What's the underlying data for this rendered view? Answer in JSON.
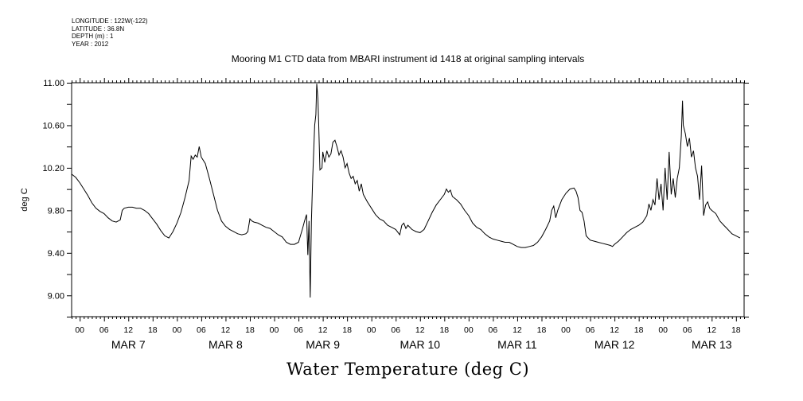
{
  "metadata": {
    "longitude": "LONGITUDE : 122W(-122)",
    "latitude": "LATITUDE : 36.8N",
    "depth": "DEPTH (m) : 1",
    "year": "YEAR : 2012"
  },
  "chart_data": {
    "type": "line",
    "title": "Mooring M1 CTD data from MBARI instrument id 1418 at original sampling intervals",
    "bottom_label": "Water Temperature (deg C)",
    "ylabel": "deg C",
    "xlabel": "",
    "ylim": [
      8.8,
      11.0
    ],
    "yticks": [
      9.0,
      9.4,
      9.8,
      10.2,
      10.6,
      11.0
    ],
    "ytick_labels": [
      "9.00",
      "9.40",
      "9.80",
      "10.20",
      "10.60",
      "11.00"
    ],
    "x_unit": "hours since MAR 7 00:00",
    "xlim": [
      -2,
      164
    ],
    "hour_ticks": [
      0,
      6,
      12,
      18
    ],
    "hour_tick_labels": [
      "00",
      "06",
      "12",
      "18"
    ],
    "day_labels": [
      "MAR  7",
      "MAR  8",
      "MAR  9",
      "MAR  10",
      "MAR 11",
      "MAR 12",
      "MAR 13"
    ],
    "grid": false,
    "series": [
      {
        "values": [
          [
            -2,
            10.14
          ],
          [
            -1,
            10.11
          ],
          [
            0,
            10.06
          ],
          [
            1,
            10.0
          ],
          [
            2,
            9.94
          ],
          [
            3,
            9.87
          ],
          [
            4,
            9.82
          ],
          [
            5,
            9.79
          ],
          [
            6,
            9.77
          ],
          [
            7,
            9.73
          ],
          [
            8,
            9.7
          ],
          [
            9,
            9.69
          ],
          [
            10,
            9.71
          ],
          [
            10.5,
            9.8
          ],
          [
            11,
            9.82
          ],
          [
            12,
            9.83
          ],
          [
            13,
            9.83
          ],
          [
            14,
            9.82
          ],
          [
            15,
            9.82
          ],
          [
            16,
            9.8
          ],
          [
            17,
            9.77
          ],
          [
            18,
            9.72
          ],
          [
            19,
            9.67
          ],
          [
            20,
            9.61
          ],
          [
            21,
            9.56
          ],
          [
            22,
            9.54
          ],
          [
            23,
            9.6
          ],
          [
            24,
            9.68
          ],
          [
            25,
            9.78
          ],
          [
            26,
            9.92
          ],
          [
            27,
            10.08
          ],
          [
            27.5,
            10.31
          ],
          [
            28,
            10.28
          ],
          [
            28.5,
            10.32
          ],
          [
            29,
            10.3
          ],
          [
            29.5,
            10.4
          ],
          [
            30,
            10.3
          ],
          [
            31,
            10.24
          ],
          [
            32,
            10.1
          ],
          [
            33,
            9.95
          ],
          [
            34,
            9.8
          ],
          [
            35,
            9.7
          ],
          [
            36,
            9.65
          ],
          [
            37,
            9.62
          ],
          [
            38,
            9.6
          ],
          [
            39,
            9.58
          ],
          [
            40,
            9.57
          ],
          [
            41,
            9.58
          ],
          [
            41.5,
            9.6
          ],
          [
            42,
            9.72
          ],
          [
            42.5,
            9.7
          ],
          [
            43,
            9.69
          ],
          [
            44,
            9.68
          ],
          [
            45,
            9.66
          ],
          [
            46,
            9.64
          ],
          [
            47,
            9.63
          ],
          [
            48,
            9.6
          ],
          [
            49,
            9.57
          ],
          [
            50,
            9.55
          ],
          [
            51,
            9.5
          ],
          [
            52,
            9.48
          ],
          [
            53,
            9.48
          ],
          [
            54,
            9.5
          ],
          [
            55,
            9.63
          ],
          [
            55.5,
            9.7
          ],
          [
            56,
            9.76
          ],
          [
            56.3,
            9.38
          ],
          [
            56.6,
            9.7
          ],
          [
            56.9,
            8.98
          ],
          [
            57.2,
            9.7
          ],
          [
            57.5,
            10.1
          ],
          [
            58,
            10.6
          ],
          [
            58.3,
            10.7
          ],
          [
            58.5,
            10.99
          ],
          [
            58.8,
            10.85
          ],
          [
            59,
            10.6
          ],
          [
            59.3,
            10.18
          ],
          [
            59.8,
            10.2
          ],
          [
            60,
            10.35
          ],
          [
            60.5,
            10.25
          ],
          [
            61,
            10.36
          ],
          [
            61.5,
            10.3
          ],
          [
            62,
            10.33
          ],
          [
            62.5,
            10.44
          ],
          [
            63,
            10.46
          ],
          [
            63.5,
            10.4
          ],
          [
            64,
            10.32
          ],
          [
            64.5,
            10.36
          ],
          [
            65,
            10.3
          ],
          [
            65.5,
            10.2
          ],
          [
            66,
            10.24
          ],
          [
            66.5,
            10.15
          ],
          [
            67,
            10.1
          ],
          [
            67.5,
            10.12
          ],
          [
            68,
            10.05
          ],
          [
            68.5,
            10.08
          ],
          [
            69,
            9.98
          ],
          [
            69.5,
            10.05
          ],
          [
            70,
            9.95
          ],
          [
            71,
            9.88
          ],
          [
            72,
            9.82
          ],
          [
            73,
            9.76
          ],
          [
            74,
            9.72
          ],
          [
            75,
            9.7
          ],
          [
            76,
            9.66
          ],
          [
            77,
            9.64
          ],
          [
            78,
            9.62
          ],
          [
            79,
            9.57
          ],
          [
            79.5,
            9.66
          ],
          [
            80,
            9.68
          ],
          [
            80.5,
            9.63
          ],
          [
            81,
            9.66
          ],
          [
            82,
            9.62
          ],
          [
            83,
            9.6
          ],
          [
            84,
            9.59
          ],
          [
            85,
            9.62
          ],
          [
            86,
            9.7
          ],
          [
            87,
            9.78
          ],
          [
            88,
            9.85
          ],
          [
            89,
            9.9
          ],
          [
            90,
            9.95
          ],
          [
            90.5,
            10.0
          ],
          [
            91,
            9.97
          ],
          [
            91.5,
            9.99
          ],
          [
            92,
            9.93
          ],
          [
            93,
            9.9
          ],
          [
            94,
            9.86
          ],
          [
            95,
            9.8
          ],
          [
            96,
            9.75
          ],
          [
            97,
            9.68
          ],
          [
            98,
            9.64
          ],
          [
            99,
            9.62
          ],
          [
            100,
            9.58
          ],
          [
            101,
            9.55
          ],
          [
            102,
            9.53
          ],
          [
            103,
            9.52
          ],
          [
            104,
            9.51
          ],
          [
            105,
            9.5
          ],
          [
            106,
            9.5
          ],
          [
            107,
            9.48
          ],
          [
            108,
            9.46
          ],
          [
            109,
            9.45
          ],
          [
            110,
            9.45
          ],
          [
            111,
            9.46
          ],
          [
            112,
            9.47
          ],
          [
            113,
            9.5
          ],
          [
            114,
            9.55
          ],
          [
            115,
            9.62
          ],
          [
            116,
            9.7
          ],
          [
            116.5,
            9.8
          ],
          [
            117,
            9.84
          ],
          [
            117.5,
            9.73
          ],
          [
            118,
            9.8
          ],
          [
            119,
            9.9
          ],
          [
            120,
            9.96
          ],
          [
            121,
            10.0
          ],
          [
            122,
            10.01
          ],
          [
            122.5,
            9.98
          ],
          [
            123,
            9.92
          ],
          [
            123.5,
            9.8
          ],
          [
            124,
            9.78
          ],
          [
            124.5,
            9.7
          ],
          [
            125,
            9.56
          ],
          [
            126,
            9.52
          ],
          [
            127,
            9.51
          ],
          [
            128,
            9.5
          ],
          [
            129,
            9.49
          ],
          [
            130,
            9.48
          ],
          [
            131,
            9.47
          ],
          [
            131.5,
            9.46
          ],
          [
            132,
            9.48
          ],
          [
            133,
            9.51
          ],
          [
            134,
            9.55
          ],
          [
            135,
            9.59
          ],
          [
            136,
            9.62
          ],
          [
            137,
            9.64
          ],
          [
            138,
            9.66
          ],
          [
            139,
            9.69
          ],
          [
            140,
            9.75
          ],
          [
            140.5,
            9.86
          ],
          [
            141,
            9.8
          ],
          [
            141.5,
            9.9
          ],
          [
            142,
            9.85
          ],
          [
            142.5,
            10.1
          ],
          [
            143,
            9.9
          ],
          [
            143.5,
            10.05
          ],
          [
            144,
            9.8
          ],
          [
            144.5,
            10.2
          ],
          [
            145,
            9.9
          ],
          [
            145.5,
            10.35
          ],
          [
            146,
            9.95
          ],
          [
            146.5,
            10.1
          ],
          [
            147,
            9.92
          ],
          [
            147.5,
            10.1
          ],
          [
            148,
            10.2
          ],
          [
            148.5,
            10.5
          ],
          [
            148.8,
            10.83
          ],
          [
            149,
            10.6
          ],
          [
            149.5,
            10.52
          ],
          [
            150,
            10.4
          ],
          [
            150.5,
            10.48
          ],
          [
            151,
            10.3
          ],
          [
            151.5,
            10.36
          ],
          [
            152,
            10.2
          ],
          [
            152.5,
            10.12
          ],
          [
            153,
            9.9
          ],
          [
            153.5,
            10.22
          ],
          [
            154,
            9.75
          ],
          [
            154.5,
            9.85
          ],
          [
            155,
            9.88
          ],
          [
            155.5,
            9.82
          ],
          [
            156,
            9.8
          ],
          [
            157,
            9.77
          ],
          [
            158,
            9.7
          ],
          [
            159,
            9.66
          ],
          [
            160,
            9.62
          ],
          [
            161,
            9.58
          ],
          [
            162,
            9.56
          ],
          [
            163,
            9.54
          ]
        ]
      }
    ]
  }
}
